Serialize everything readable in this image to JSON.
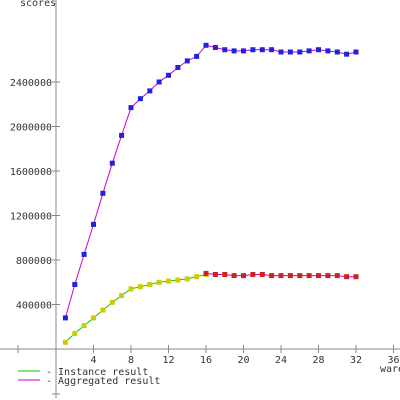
{
  "chart_data": {
    "type": "line",
    "ylabel": "scores",
    "xlabel": "ware",
    "xlim": [
      0,
      36
    ],
    "ylim": [
      0,
      2800000
    ],
    "x_ticks": [
      4,
      8,
      12,
      16,
      20,
      24,
      28,
      32,
      36
    ],
    "y_ticks": [
      400000,
      800000,
      1200000,
      1600000,
      2000000,
      2400000
    ],
    "legend": [
      {
        "label": "- Instance result",
        "color": "#00cc00"
      },
      {
        "label": "- Aggregated result",
        "color": "#cc00cc"
      }
    ],
    "series": [
      {
        "line_color": "#cc00cc",
        "marker_color": "#2222dd",
        "x": [
          1,
          2,
          3,
          4,
          5,
          6,
          7,
          8,
          9,
          10,
          11,
          12,
          13,
          14,
          15,
          16,
          17,
          18,
          19,
          20,
          21,
          22,
          23,
          24,
          25,
          26,
          27,
          28,
          29,
          30,
          31,
          32
        ],
        "y": [
          280000,
          580000,
          850000,
          1120000,
          1400000,
          1670000,
          1920000,
          2170000,
          2250000,
          2320000,
          2400000,
          2460000,
          2530000,
          2590000,
          2630000,
          2730000,
          2710000,
          2690000,
          2680000,
          2680000,
          2690000,
          2690000,
          2690000,
          2670000,
          2670000,
          2670000,
          2680000,
          2690000,
          2680000,
          2670000,
          2650000,
          2670000
        ]
      },
      {
        "line_color": "#00cc00",
        "marker_color": "#cccc00",
        "x": [
          1,
          2,
          3,
          4,
          5,
          6,
          7,
          8,
          9,
          10,
          11,
          12,
          13,
          14,
          15,
          16
        ],
        "y": [
          60000,
          140000,
          210000,
          280000,
          350000,
          420000,
          480000,
          540000,
          560000,
          580000,
          600000,
          610000,
          620000,
          630000,
          650000,
          670000
        ]
      },
      {
        "line_color": "#cc00cc",
        "marker_color": "#cc2222",
        "x": [
          16,
          17,
          18,
          19,
          20,
          21,
          22,
          23,
          24,
          25,
          26,
          27,
          28,
          29,
          30,
          31,
          32
        ],
        "y": [
          680000,
          670000,
          670000,
          660000,
          660000,
          670000,
          670000,
          660000,
          660000,
          660000,
          660000,
          660000,
          660000,
          660000,
          660000,
          650000,
          650000
        ]
      }
    ]
  }
}
